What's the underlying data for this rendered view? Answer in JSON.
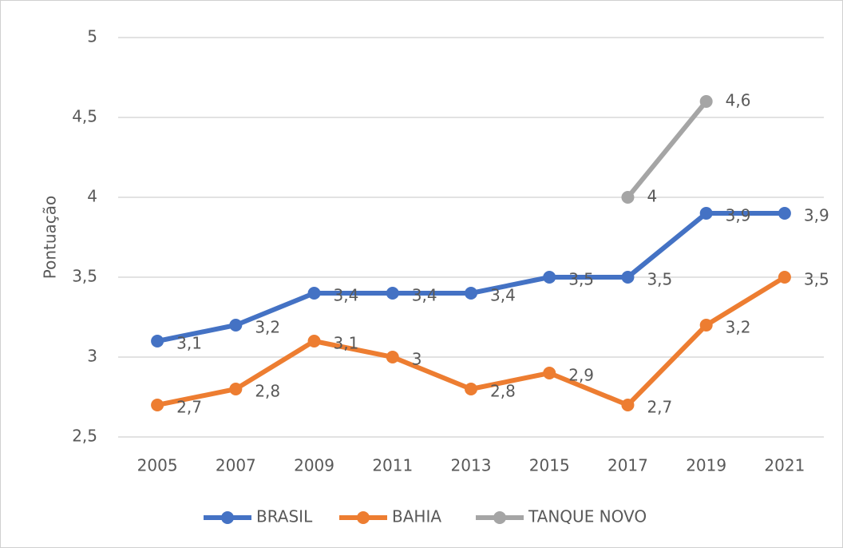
{
  "chart_data": {
    "type": "line",
    "y_label": "Pontuação",
    "categories": [
      "2005",
      "2007",
      "2009",
      "2011",
      "2013",
      "2015",
      "2017",
      "2019",
      "2021"
    ],
    "series": [
      {
        "name": "BRASIL",
        "color": "#4472c4",
        "values": [
          3.1,
          3.2,
          3.4,
          3.4,
          3.4,
          3.5,
          3.5,
          3.9,
          3.9
        ],
        "value_labels": [
          "3,1",
          "3,2",
          "3,4",
          "3,4",
          "3,4",
          "3,5",
          "3,5",
          "3,9",
          "3,9"
        ]
      },
      {
        "name": "BAHIA",
        "color": "#ed7d31",
        "values": [
          2.7,
          2.8,
          3.1,
          3,
          2.8,
          2.9,
          2.7,
          3.2,
          3.5
        ],
        "value_labels": [
          "2,7",
          "2,8",
          "3,1",
          "3",
          "2,8",
          "2,9",
          "2,7",
          "3,2",
          "3,5"
        ]
      },
      {
        "name": "TANQUE NOVO",
        "color": "#a5a5a5",
        "values": [
          null,
          null,
          null,
          null,
          null,
          null,
          4,
          4.6,
          null
        ],
        "value_labels": [
          null,
          null,
          null,
          null,
          null,
          null,
          "4",
          "4,6",
          null
        ]
      }
    ],
    "ylim": [
      2.5,
      5
    ],
    "yticks": [
      {
        "value": 2.5,
        "label": "2,5"
      },
      3,
      {
        "value": 3.5,
        "label": "3,5"
      },
      4,
      {
        "value": 4.5,
        "label": "4,5"
      },
      5
    ],
    "grid": true,
    "legend": "bottom"
  }
}
